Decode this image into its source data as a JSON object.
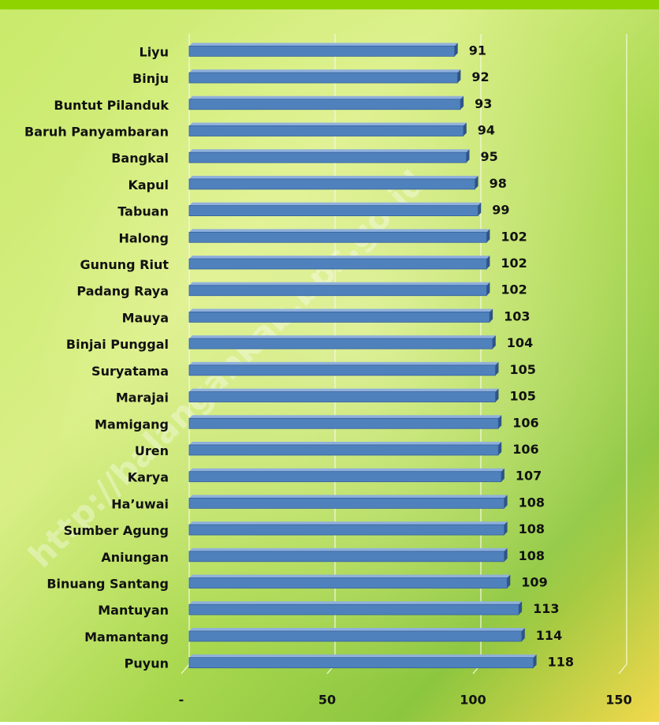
{
  "chart_data": {
    "type": "bar",
    "orientation": "horizontal",
    "categories": [
      "Liyu",
      "Binju",
      "Buntut Pilanduk",
      "Baruh Panyambaran",
      "Bangkal",
      "Kapul",
      "Tabuan",
      "Halong",
      "Gunung Riut",
      "Padang Raya",
      "Mauya",
      "Binjai Punggal",
      "Suryatama",
      "Marajai",
      "Mamigang",
      "Uren",
      "Karya",
      "Ha’uwai",
      "Sumber Agung",
      "Aniungan",
      "Binuang Santang",
      "Mantuyan",
      "Mamantang",
      "Puyun"
    ],
    "values": [
      91,
      92,
      93,
      94,
      95,
      98,
      99,
      102,
      102,
      102,
      103,
      104,
      105,
      105,
      106,
      106,
      107,
      108,
      108,
      108,
      109,
      113,
      114,
      118
    ],
    "color": "#4f81bd",
    "xlim": [
      0,
      150
    ],
    "xticks": [
      {
        "value": 0,
        "label": "-"
      },
      50,
      100,
      150
    ],
    "grid": true,
    "watermark": "http://balangankab.bps.go.id"
  }
}
